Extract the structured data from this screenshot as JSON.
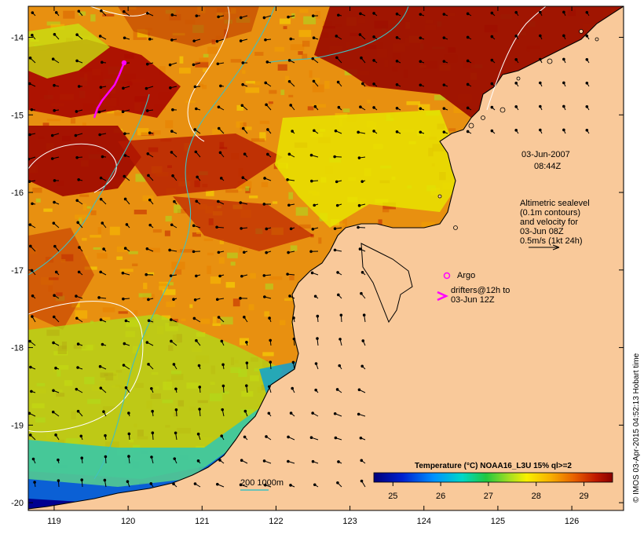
{
  "map": {
    "lat_ticks": [
      "-14",
      "-15",
      "-16",
      "-17",
      "-18",
      "-19",
      "-20"
    ],
    "lon_ticks": [
      "119",
      "120",
      "121",
      "122",
      "123",
      "124",
      "125",
      "126"
    ],
    "lat_range": [
      -20.1,
      -13.6
    ],
    "lon_range": [
      118.65,
      126.7
    ]
  },
  "annotations": {
    "date": "03-Jun-2007",
    "time": "08:44Z",
    "alt_line1": "Altimetric sealevel",
    "alt_line2": "(0.1m contours)",
    "alt_line3": "and velocity for",
    "alt_line4": "03-Jun 08Z",
    "alt_line5": "0.5m/s (1kt 24h)",
    "argo_label": "Argo",
    "drifter_line1": "drifters@12h to",
    "drifter_line2": "03-Jun 12Z",
    "bathy_label": "200  1000m"
  },
  "colorbar": {
    "title": "Temperature (°C) NOAA16_L3U 15% ql>=2",
    "ticks": [
      "25",
      "26",
      "27",
      "28",
      "29"
    ],
    "range": [
      24.6,
      29.6
    ]
  },
  "credit": "© IMOS 03-Apr-2015 04:52:13 Hobart time",
  "colors": {
    "land": "#f9c99a",
    "drifter": "#ff00ff",
    "argo": "#ff00ff",
    "bathy_contour": "#40c0c0",
    "sealevel_contour": "#ffffff"
  }
}
